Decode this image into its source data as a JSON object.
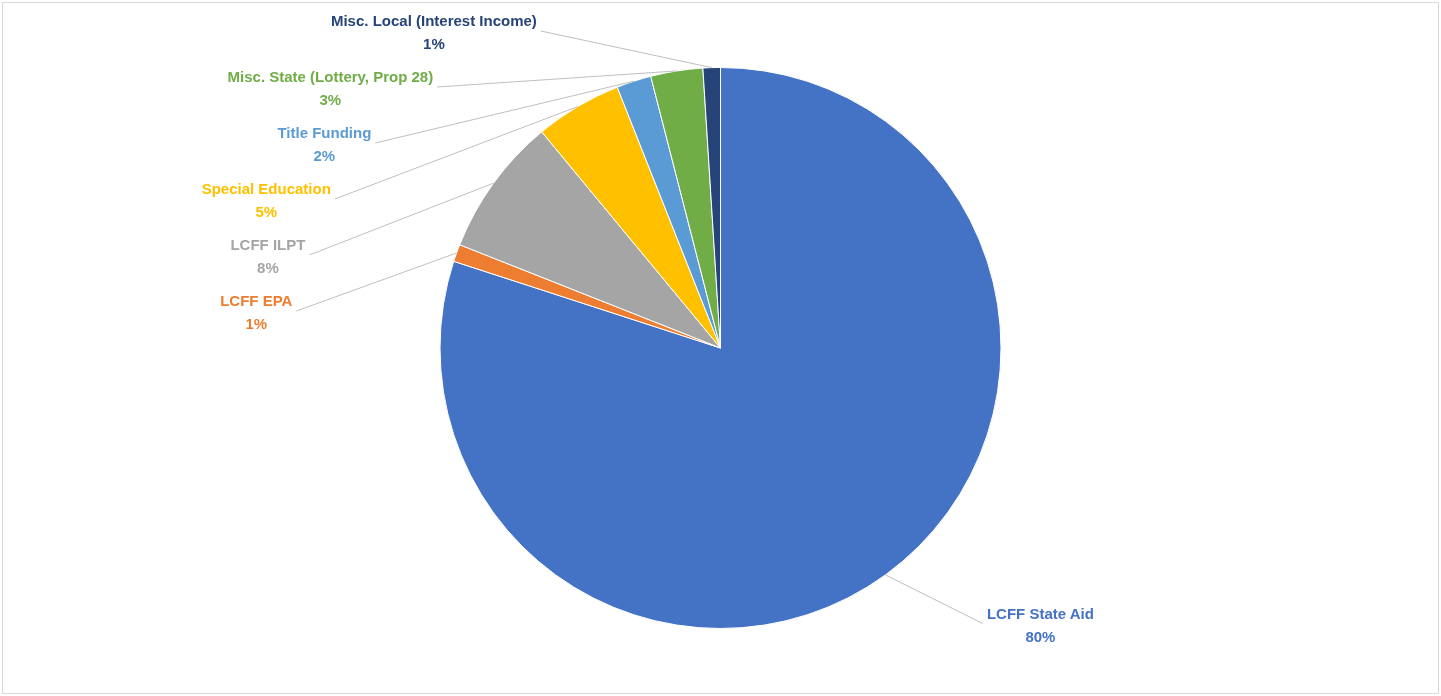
{
  "chart_data": {
    "type": "pie",
    "categories": [
      "LCFF State Aid",
      "LCFF EPA",
      "LCFF ILPT",
      "Special Education",
      "Title Funding",
      "Misc. State (Lottery, Prop 28)",
      "Misc. Local (Interest Income)"
    ],
    "values": [
      80,
      1,
      8,
      5,
      2,
      3,
      1
    ],
    "value_labels": [
      "80%",
      "1%",
      "8%",
      "5%",
      "2%",
      "3%",
      "1%"
    ],
    "colors": [
      "#4472c4",
      "#ed7d31",
      "#a5a5a5",
      "#ffc000",
      "#5b9bd5",
      "#70ad47",
      "#264478"
    ],
    "legend": false
  }
}
